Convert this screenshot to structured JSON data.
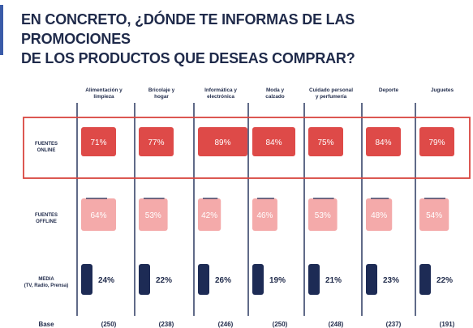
{
  "title": {
    "line1": "EN CONCRETO, ¿DÓNDE TE INFORMAS DE LAS PROMOCIONES",
    "line2": "DE LOS PRODUCTOS  QUE DESEAS COMPRAR?"
  },
  "colors": {
    "online": "#de4a48",
    "offline": "#f4aaaa",
    "media": "#1d2b55",
    "highlight_border": "#d9453f",
    "text": "#1f2a4a",
    "accent": "#3a5ba8"
  },
  "chart_data": {
    "type": "table",
    "categories": [
      [
        "Alimentación y",
        "limpieza"
      ],
      [
        "Bricolaje y",
        "hogar"
      ],
      [
        "Informática y",
        "electrónica"
      ],
      [
        "Moda y",
        "calzado"
      ],
      [
        "Cuidado personal",
        "y perfumería"
      ],
      [
        "Deporte"
      ],
      [
        "Juguetes"
      ]
    ],
    "series": [
      {
        "name": [
          "FUENTES",
          "ONLINE"
        ],
        "values": [
          71,
          77,
          89,
          84,
          75,
          84,
          79
        ]
      },
      {
        "name": [
          "FUENTES",
          "OFFLINE"
        ],
        "values": [
          64,
          53,
          42,
          46,
          53,
          48,
          54
        ]
      },
      {
        "name": [
          "MEDIA",
          "(TV, Radio, Prensa)"
        ],
        "values": [
          24,
          22,
          26,
          19,
          21,
          23,
          22
        ]
      }
    ],
    "base": {
      "label": "Base",
      "values": [
        "(250)",
        "(238)",
        "(246)",
        "(250)",
        "(248)",
        "(237)",
        "(191)"
      ]
    },
    "unit": "%",
    "highlighted_series": 0
  }
}
